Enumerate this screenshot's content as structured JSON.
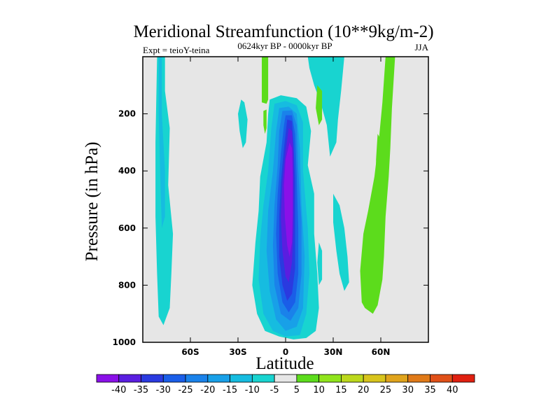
{
  "chart_data": {
    "type": "contour",
    "title": "Meridional Streamfunction (10**9kg/m-2)",
    "subtitle_left": "Expt = teioY-teina",
    "subtitle_center": "0624kyr BP - 0000kyr BP",
    "subtitle_right": "JJA",
    "xlabel": "Latitude",
    "ylabel": "Pressure (in hPa)",
    "xlim": [
      -90,
      90
    ],
    "ylim": [
      1000,
      0
    ],
    "x_ticks": [
      {
        "value": -60,
        "label": "60S"
      },
      {
        "value": -30,
        "label": "30S"
      },
      {
        "value": 0,
        "label": "0"
      },
      {
        "value": 30,
        "label": "30N"
      },
      {
        "value": 60,
        "label": "60N"
      }
    ],
    "y_ticks": [
      {
        "value": 200,
        "label": "200"
      },
      {
        "value": 400,
        "label": "400"
      },
      {
        "value": 600,
        "label": "600"
      },
      {
        "value": 800,
        "label": "800"
      },
      {
        "value": 1000,
        "label": "1000"
      }
    ],
    "background_color": "#e6e6e6",
    "colorbar": {
      "labels": [
        "-40",
        "-35",
        "-30",
        "-25",
        "-20",
        "-15",
        "-10",
        "-5",
        "5",
        "10",
        "15",
        "20",
        "25",
        "30",
        "35",
        "40"
      ],
      "colors": [
        "#8a10e8",
        "#5a1ee0",
        "#2a3ae0",
        "#1a5ee8",
        "#1a82ea",
        "#18a0e8",
        "#16bce0",
        "#18d4d0",
        "#e6e6e6",
        "#5cdc1c",
        "#90e41c",
        "#bcd81c",
        "#d8c41c",
        "#e0a41c",
        "#e07a18",
        "#e05018",
        "#e02010"
      ]
    },
    "regions": [
      {
        "name": "tropical-cell-level-1",
        "value": -5,
        "color": "#18d4d0",
        "points": [
          [
            -10,
            150
          ],
          [
            -3,
            135
          ],
          [
            7,
            145
          ],
          [
            13,
            175
          ],
          [
            16,
            260
          ],
          [
            14,
            380
          ],
          [
            18,
            480
          ],
          [
            18,
            620
          ],
          [
            20,
            760
          ],
          [
            21,
            880
          ],
          [
            19,
            960
          ],
          [
            13,
            985
          ],
          [
            5,
            990
          ],
          [
            -4,
            980
          ],
          [
            -13,
            960
          ],
          [
            -18,
            900
          ],
          [
            -21,
            800
          ],
          [
            -19,
            650
          ],
          [
            -17,
            540
          ],
          [
            -16,
            420
          ],
          [
            -12,
            300
          ],
          [
            -11,
            200
          ]
        ]
      },
      {
        "name": "tropical-cell-level-2",
        "value": -10,
        "color": "#16bce0",
        "points": [
          [
            -7,
            165
          ],
          [
            0,
            155
          ],
          [
            7,
            170
          ],
          [
            11,
            230
          ],
          [
            11,
            400
          ],
          [
            14,
            600
          ],
          [
            15,
            760
          ],
          [
            13,
            900
          ],
          [
            9,
            975
          ],
          [
            0,
            980
          ],
          [
            -8,
            960
          ],
          [
            -14,
            900
          ],
          [
            -17,
            780
          ],
          [
            -16,
            640
          ],
          [
            -14,
            520
          ],
          [
            -11,
            400
          ],
          [
            -9,
            250
          ]
        ]
      },
      {
        "name": "tropical-cell-level-3",
        "value": -15,
        "color": "#18a0e8",
        "points": [
          [
            -4,
            180
          ],
          [
            2,
            175
          ],
          [
            7,
            200
          ],
          [
            9,
            320
          ],
          [
            10,
            520
          ],
          [
            12,
            700
          ],
          [
            11,
            880
          ],
          [
            7,
            945
          ],
          [
            0,
            960
          ],
          [
            -6,
            920
          ],
          [
            -10,
            820
          ],
          [
            -12,
            680
          ],
          [
            -11,
            540
          ],
          [
            -8,
            400
          ],
          [
            -6,
            260
          ]
        ]
      },
      {
        "name": "tropical-cell-level-4",
        "value": -20,
        "color": "#1a82ea",
        "points": [
          [
            -2,
            190
          ],
          [
            4,
            188
          ],
          [
            7,
            240
          ],
          [
            8,
            400
          ],
          [
            10,
            580
          ],
          [
            10,
            760
          ],
          [
            8,
            880
          ],
          [
            3,
            925
          ],
          [
            -3,
            900
          ],
          [
            -7,
            800
          ],
          [
            -8,
            660
          ],
          [
            -7,
            520
          ],
          [
            -5,
            380
          ],
          [
            -4,
            260
          ]
        ]
      },
      {
        "name": "tropical-cell-level-5",
        "value": -25,
        "color": "#1a5ee8",
        "points": [
          [
            0,
            205
          ],
          [
            4,
            205
          ],
          [
            6,
            270
          ],
          [
            7,
            420
          ],
          [
            8,
            600
          ],
          [
            8,
            760
          ],
          [
            6,
            860
          ],
          [
            2,
            895
          ],
          [
            -2,
            860
          ],
          [
            -5,
            760
          ],
          [
            -6,
            620
          ],
          [
            -5,
            480
          ],
          [
            -3,
            340
          ],
          [
            -1,
            240
          ]
        ]
      },
      {
        "name": "tropical-cell-level-6",
        "value": -30,
        "color": "#2a3ae0",
        "points": [
          [
            1,
            220
          ],
          [
            4,
            225
          ],
          [
            5,
            300
          ],
          [
            6,
            440
          ],
          [
            6,
            600
          ],
          [
            6,
            740
          ],
          [
            4,
            830
          ],
          [
            1,
            855
          ],
          [
            -2,
            800
          ],
          [
            -4,
            700
          ],
          [
            -4,
            560
          ],
          [
            -3,
            440
          ],
          [
            -1,
            320
          ]
        ]
      },
      {
        "name": "tropical-cell-level-7",
        "value": -35,
        "color": "#5a1ee0",
        "points": [
          [
            2,
            250
          ],
          [
            4,
            260
          ],
          [
            5,
            340
          ],
          [
            5,
            460
          ],
          [
            5,
            600
          ],
          [
            4,
            720
          ],
          [
            2,
            790
          ],
          [
            0,
            770
          ],
          [
            -2,
            680
          ],
          [
            -3,
            560
          ],
          [
            -2,
            440
          ],
          [
            0,
            330
          ]
        ]
      },
      {
        "name": "tropical-cell-level-8",
        "value": -40,
        "color": "#8a10e8",
        "points": [
          [
            2.5,
            300
          ],
          [
            4,
            320
          ],
          [
            4.5,
            420
          ],
          [
            4.5,
            540
          ],
          [
            4,
            650
          ],
          [
            2.5,
            700
          ],
          [
            1,
            660
          ],
          [
            -0.5,
            560
          ],
          [
            -1,
            450
          ],
          [
            0,
            360
          ]
        ]
      },
      {
        "name": "southern-band-outer",
        "value": -5,
        "color": "#18d4d0",
        "points": [
          [
            -81,
            0
          ],
          [
            -76,
            0
          ],
          [
            -76,
            120
          ],
          [
            -73,
            250
          ],
          [
            -74,
            450
          ],
          [
            -71,
            620
          ],
          [
            -72,
            760
          ],
          [
            -73,
            880
          ],
          [
            -77,
            940
          ],
          [
            -80,
            910
          ],
          [
            -81,
            760
          ],
          [
            -82,
            560
          ],
          [
            -82,
            300
          ]
        ]
      },
      {
        "name": "southern-band-inner",
        "value": -10,
        "color": "#16bce0",
        "points": [
          [
            -80,
            0
          ],
          [
            -78,
            0
          ],
          [
            -78,
            200
          ],
          [
            -76,
            400
          ],
          [
            -76,
            560
          ],
          [
            -78,
            600
          ],
          [
            -79,
            420
          ],
          [
            -80,
            200
          ]
        ]
      },
      {
        "name": "nh-minus-band",
        "value": -5,
        "color": "#18d4d0",
        "points": [
          [
            14,
            0
          ],
          [
            37,
            0
          ],
          [
            35,
            120
          ],
          [
            33,
            220
          ],
          [
            32,
            300
          ],
          [
            28,
            350
          ],
          [
            26,
            240
          ],
          [
            22,
            160
          ],
          [
            18,
            100
          ],
          [
            15,
            40
          ]
        ]
      },
      {
        "name": "nh-minus-lobe",
        "value": -5,
        "color": "#18d4d0",
        "points": [
          [
            30,
            480
          ],
          [
            34,
            520
          ],
          [
            37,
            600
          ],
          [
            39,
            700
          ],
          [
            40,
            790
          ],
          [
            37,
            820
          ],
          [
            34,
            760
          ],
          [
            32,
            680
          ],
          [
            30,
            580
          ]
        ]
      },
      {
        "name": "nh-minus-streak",
        "value": -5,
        "color": "#18d4d0",
        "points": [
          [
            21,
            650
          ],
          [
            23,
            680
          ],
          [
            23,
            780
          ],
          [
            21,
            800
          ],
          [
            20,
            720
          ]
        ]
      },
      {
        "name": "sh-minus-blob",
        "value": -5,
        "color": "#18d4d0",
        "points": [
          [
            -28,
            150
          ],
          [
            -26,
            160
          ],
          [
            -24,
            220
          ],
          [
            -25,
            300
          ],
          [
            -27,
            320
          ],
          [
            -29,
            260
          ],
          [
            -30,
            200
          ]
        ]
      },
      {
        "name": "sh-positive-top",
        "value": 5,
        "color": "#5cdc1c",
        "points": [
          [
            -15,
            0
          ],
          [
            -11,
            0
          ],
          [
            -11,
            150
          ],
          [
            -12,
            165
          ],
          [
            -15,
            160
          ],
          [
            -15,
            80
          ]
        ]
      },
      {
        "name": "sh-positive-small",
        "value": 5,
        "color": "#5cdc1c",
        "points": [
          [
            -14,
            190
          ],
          [
            -12,
            185
          ],
          [
            -12,
            250
          ],
          [
            -13,
            270
          ],
          [
            -14,
            240
          ]
        ]
      },
      {
        "name": "nh-positive-pressure-blob",
        "value": 5,
        "color": "#5cdc1c",
        "points": [
          [
            20,
            100
          ],
          [
            23,
            120
          ],
          [
            23,
            220
          ],
          [
            21,
            240
          ],
          [
            19,
            180
          ]
        ]
      },
      {
        "name": "nh-positive-band",
        "value": 5,
        "color": "#5cdc1c",
        "points": [
          [
            63,
            0
          ],
          [
            69,
            0
          ],
          [
            67,
            180
          ],
          [
            66,
            320
          ],
          [
            65,
            420
          ],
          [
            63,
            560
          ],
          [
            62,
            700
          ],
          [
            61,
            780
          ],
          [
            58,
            870
          ],
          [
            55,
            900
          ],
          [
            50,
            880
          ],
          [
            48,
            860
          ],
          [
            47,
            750
          ],
          [
            49,
            620
          ],
          [
            52,
            540
          ],
          [
            56,
            420
          ],
          [
            59,
            280
          ],
          [
            61,
            160
          ]
        ]
      },
      {
        "name": "nh-positive-minor",
        "value": 5,
        "color": "#5cdc1c",
        "points": [
          [
            58,
            270
          ],
          [
            60,
            290
          ],
          [
            59,
            420
          ],
          [
            57,
            440
          ],
          [
            57,
            360
          ]
        ]
      }
    ]
  }
}
